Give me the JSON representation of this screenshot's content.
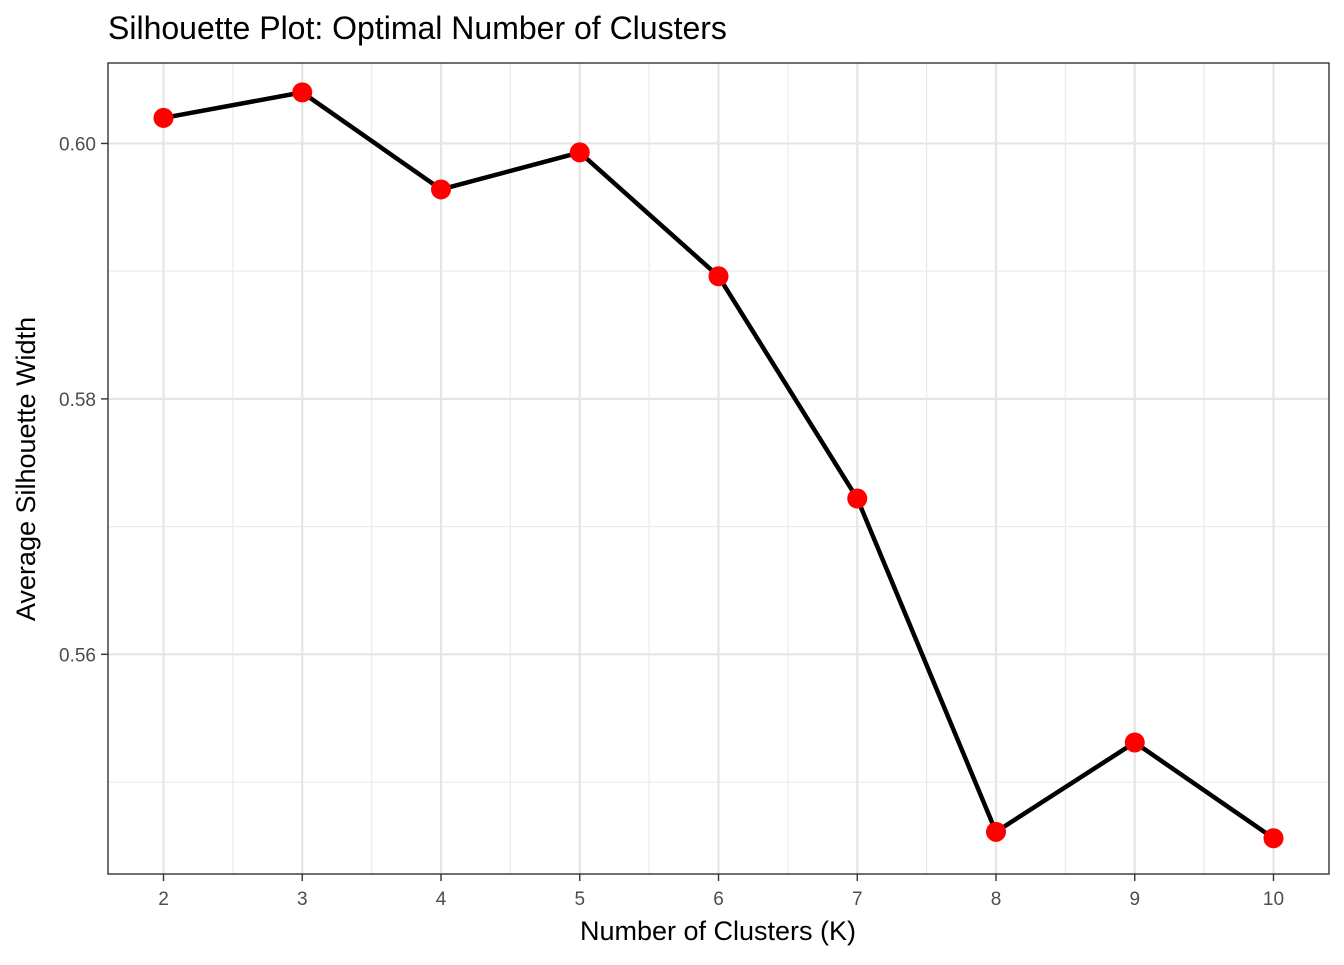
{
  "chart_data": {
    "type": "line",
    "title": "Silhouette Plot: Optimal Number of Clusters",
    "xlabel": "Number of Clusters (K)",
    "ylabel": "Average Silhouette Width",
    "x": [
      2,
      3,
      4,
      5,
      6,
      7,
      8,
      9,
      10
    ],
    "x_tick_labels": [
      "2",
      "3",
      "4",
      "5",
      "6",
      "7",
      "8",
      "9",
      "10"
    ],
    "y_ticks": [
      0.56,
      0.58,
      0.6
    ],
    "y_tick_labels": [
      "0.56",
      "0.58",
      "0.60"
    ],
    "xlim": [
      1.6,
      10.4
    ],
    "ylim": [
      0.5428,
      0.6063
    ],
    "series": [
      {
        "values": [
          0.602,
          0.604,
          0.5964,
          0.5993,
          0.5896,
          0.5722,
          0.5461,
          0.5531,
          0.5456
        ],
        "line_color": "#000000",
        "marker_color": "#ff0000"
      }
    ],
    "grid": true,
    "legend": "none",
    "theme": "bw"
  }
}
